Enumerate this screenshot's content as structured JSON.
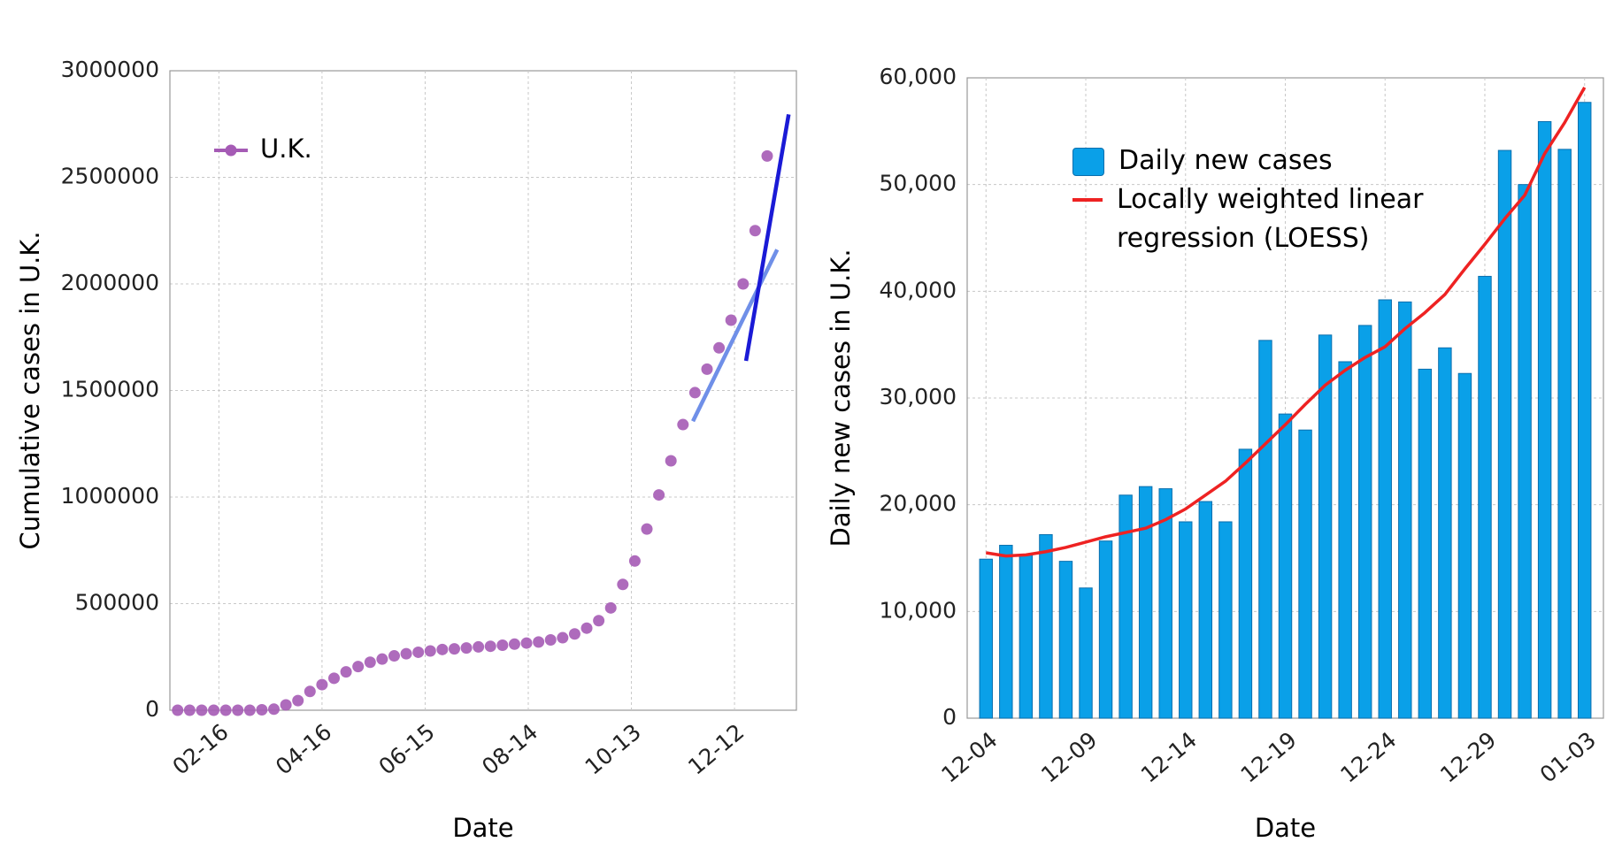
{
  "chart_data": [
    {
      "type": "scatter",
      "y_label": "Cumulative cases in U.K.",
      "x_label": "Date",
      "xlim": [
        18.5,
        383
      ],
      "ylim": [
        0,
        3000000
      ],
      "xticks": [
        {
          "value": 47,
          "label": "02-16"
        },
        {
          "value": 107,
          "label": "04-16"
        },
        {
          "value": 167,
          "label": "06-15"
        },
        {
          "value": 227,
          "label": "08-14"
        },
        {
          "value": 287,
          "label": "10-13"
        },
        {
          "value": 347,
          "label": "12-12"
        }
      ],
      "yticks": [
        0,
        500000,
        1000000,
        1500000,
        2000000,
        2500000,
        3000000
      ],
      "grid": true,
      "legend": "upper left",
      "series": [
        {
          "name": "U.K.",
          "color": "#a55bb5",
          "mode": "markers",
          "x": [
            23,
            30,
            37,
            44,
            51,
            58,
            65,
            72,
            79,
            86,
            93,
            100,
            107,
            114,
            121,
            128,
            135,
            142,
            149,
            156,
            163,
            170,
            177,
            184,
            191,
            198,
            205,
            212,
            219,
            226,
            233,
            240,
            247,
            254,
            261,
            268,
            275,
            282,
            289,
            296,
            303,
            310,
            317,
            324,
            331,
            338,
            345,
            352,
            359,
            366
          ],
          "values": [
            0,
            0,
            0,
            0,
            0,
            0,
            0,
            2000,
            5000,
            25000,
            45000,
            88000,
            120000,
            150000,
            180000,
            205000,
            225000,
            240000,
            255000,
            265000,
            272000,
            278000,
            285000,
            288000,
            292000,
            297000,
            300000,
            305000,
            310000,
            315000,
            320000,
            330000,
            340000,
            358000,
            385000,
            420000,
            480000,
            590000,
            700000,
            850000,
            1010000,
            1170000,
            1340000,
            1490000,
            1600000,
            1700000,
            1830000,
            2000000,
            2250000,
            2600000
          ]
        },
        {
          "color": "#6f8fe8",
          "mode": "line",
          "x": [
            322.8,
            371.8
          ],
          "values": [
            1356000,
            2161000
          ]
        },
        {
          "color": "#1a1ad6",
          "mode": "line",
          "x": [
            353.7,
            378.5
          ],
          "values": [
            1639000,
            2795000
          ]
        }
      ]
    },
    {
      "type": "bar",
      "y_label": "Daily new cases in U.K.",
      "x_label": "Date",
      "categories": [
        "12-04",
        null,
        null,
        null,
        null,
        "12-09",
        null,
        null,
        null,
        null,
        "12-14",
        null,
        null,
        null,
        null,
        "12-19",
        null,
        null,
        null,
        null,
        "12-24",
        null,
        null,
        null,
        null,
        "12-29",
        null,
        null,
        null,
        null,
        "01-03"
      ],
      "ylim": [
        0,
        60000
      ],
      "yticks": [
        0,
        {
          "value": 10000,
          "label": "10,000"
        },
        {
          "value": 20000,
          "label": "20,000"
        },
        {
          "value": 30000,
          "label": "30,000"
        },
        {
          "value": 40000,
          "label": "40,000"
        },
        {
          "value": 50000,
          "label": "50,000"
        },
        {
          "value": 60000,
          "label": "60,000"
        }
      ],
      "grid": true,
      "legend": "upper center",
      "series": [
        {
          "name": "Daily new cases",
          "type": "bar",
          "color": "#0aa0e8",
          "values": [
            14900,
            16200,
            15300,
            17200,
            14700,
            12200,
            16600,
            20900,
            21700,
            21500,
            18400,
            20300,
            18400,
            25200,
            35400,
            28500,
            27000,
            35900,
            33400,
            36800,
            39200,
            39000,
            32700,
            34700,
            32300,
            41400,
            53200,
            50000,
            55900,
            53300,
            57700
          ]
        },
        {
          "name": "Locally weighted linear regression (LOESS)",
          "type": "line",
          "color": "#ee2222",
          "values": [
            15500,
            15200,
            15300,
            15600,
            16000,
            16500,
            17000,
            17400,
            17800,
            18600,
            19600,
            20900,
            22200,
            23900,
            25700,
            27500,
            29400,
            31200,
            32600,
            33800,
            34800,
            36500,
            38000,
            39700,
            42100,
            44400,
            46800,
            49000,
            52900,
            55800,
            59100
          ]
        }
      ]
    }
  ]
}
